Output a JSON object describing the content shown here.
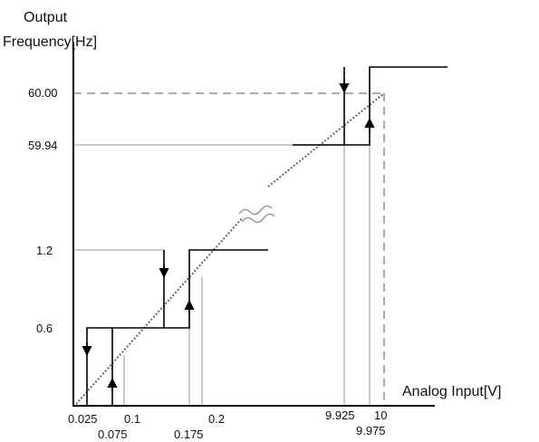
{
  "y_axis_title": [
    "Output",
    "Frequency[Hz]"
  ],
  "x_axis_title": "Analog Input[V]",
  "y_ticks": [
    "60.00",
    "59.94",
    "1.2",
    "0.6"
  ],
  "x_ticks_top": [
    "0.025",
    "0.1",
    "0.2",
    "9.925",
    "10"
  ],
  "x_ticks_bottom": [
    "0.075",
    "0.175",
    "9.975"
  ],
  "colors": {
    "axis": "#000000",
    "step": "#000000",
    "guide": "#b8b8b8",
    "dashed": "#aaaaaa",
    "diagonal": "#666666"
  }
}
